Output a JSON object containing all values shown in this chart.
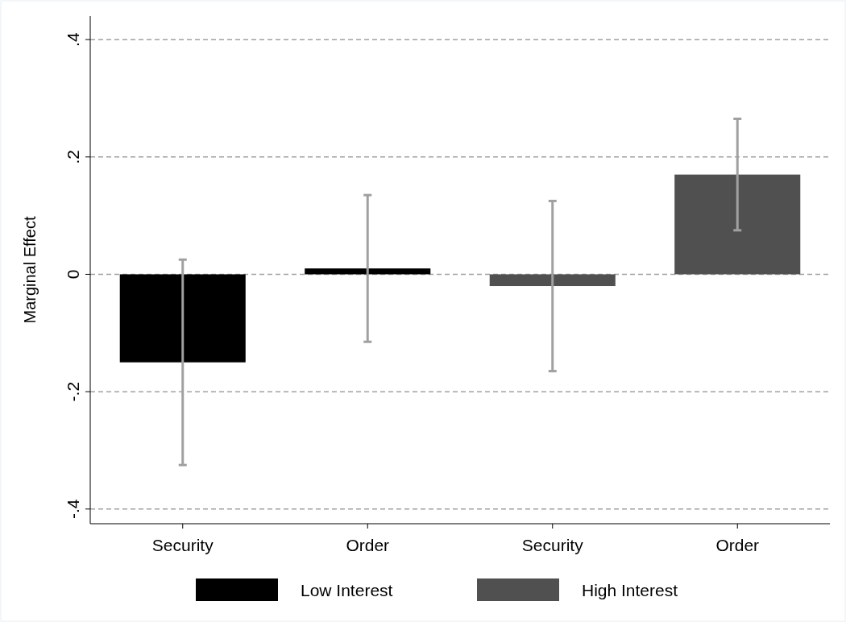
{
  "chart_data": {
    "type": "bar",
    "ylabel": "Marginal Effect",
    "categories": [
      "Security",
      "Order",
      "Security",
      "Order"
    ],
    "series": [
      {
        "name": "Low Interest",
        "color": "#000000",
        "values": [
          -0.15,
          0.01,
          null,
          null
        ],
        "errors": [
          0.175,
          0.125,
          null,
          null
        ]
      },
      {
        "name": "High Interest",
        "color": "#505050",
        "values": [
          null,
          null,
          -0.02,
          0.17
        ],
        "errors": [
          null,
          null,
          0.145,
          0.095
        ]
      }
    ],
    "ylim": [
      -0.425,
      0.44
    ],
    "yticks": [
      {
        "value": -0.4,
        "label": "-.4"
      },
      {
        "value": -0.2,
        "label": "-.2"
      },
      0,
      {
        "value": 0.2,
        "label": ".2"
      },
      {
        "value": 0.4,
        "label": ".4"
      }
    ],
    "grid": "y",
    "legend": "bottom"
  }
}
